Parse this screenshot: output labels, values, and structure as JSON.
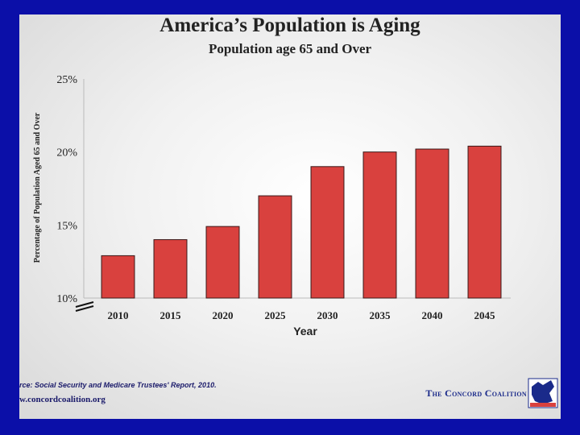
{
  "chart_data": {
    "type": "bar",
    "title": "America’s Population is Aging",
    "subtitle": "Population age 65 and Over",
    "xlabel": "Year",
    "ylabel": "Percentage of Population Aged 65 and Over",
    "categories": [
      "2010",
      "2015",
      "2020",
      "2025",
      "2030",
      "2035",
      "2040",
      "2045"
    ],
    "values": [
      12.9,
      14.0,
      14.9,
      17.0,
      19.0,
      20.0,
      20.2,
      20.4
    ],
    "ylim": [
      10,
      25
    ],
    "yticks": [
      10,
      15,
      20,
      25
    ],
    "ytick_labels": [
      "10%",
      "15%",
      "20%",
      "25%"
    ],
    "bar_color": "#d9413e",
    "grid": false,
    "legend": "none"
  },
  "footer": {
    "source": "rce: Social Security and Medicare Trustees' Report, 2010.",
    "url": "w.concordcoalition.org",
    "brand": "The Concord Coalition"
  },
  "colors": {
    "background": "#0b0fa8",
    "brand": "#1a2a8a"
  }
}
